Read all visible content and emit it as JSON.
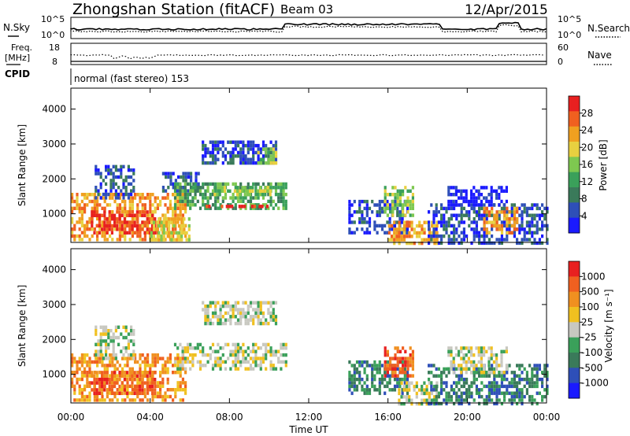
{
  "header": {
    "station": "Zhongshan Station (fitACF)",
    "beam": "Beam 03",
    "date": "12/Apr/2015"
  },
  "noise_panel": {
    "left_label": "N.Sky",
    "right_label": "N.Search",
    "left_ticks": [
      "10^5",
      "10^0"
    ],
    "right_ticks": [
      "10^5",
      "10^0"
    ]
  },
  "freq_panel": {
    "left_label_1": "Freq.",
    "left_label_2": "[MHz]",
    "right_label": "Nave",
    "left_ticks": [
      "18",
      "8"
    ],
    "right_ticks": [
      "60",
      "0"
    ]
  },
  "cpid_panel": {
    "label": "CPID",
    "text": "normal (fast stereo) 153"
  },
  "x_axis": {
    "title": "Time UT",
    "ticks": [
      "00:00",
      "04:00",
      "08:00",
      "12:00",
      "16:00",
      "20:00",
      "00:00"
    ]
  },
  "chart_data": [
    {
      "type": "heatmap",
      "name": "power",
      "ylabel": "Slant Range [km]",
      "yticks": [
        "4000",
        "3000",
        "2000",
        "1000"
      ],
      "colorbar_label": "Power [dB]",
      "colorbar_ticks": [
        "28",
        "24",
        "20",
        "16",
        "12",
        "8",
        "4"
      ],
      "palette": [
        "#1a1aff",
        "#2e4fb8",
        "#3a7a5a",
        "#3aa05a",
        "#7ec850",
        "#e8d040",
        "#f0a020",
        "#f06020",
        "#e82020"
      ],
      "colors_hex": [
        "#1a1aff",
        "#2e4fb8",
        "#3a7a5a",
        "#3aa05a",
        "#7ec850",
        "#e8d040",
        "#f0a020",
        "#f06020",
        "#e82020"
      ],
      "x_range_hours": [
        0,
        24
      ],
      "y_range_km": [
        180,
        4600
      ],
      "blocks": [
        {
          "t0": 0.0,
          "t1": 5.8,
          "r0": 300,
          "r1": 1600,
          "level": 6
        },
        {
          "t0": 1.0,
          "t1": 4.2,
          "r0": 500,
          "r1": 1100,
          "level": 8
        },
        {
          "t0": 4.0,
          "t1": 6.0,
          "r0": 300,
          "r1": 900,
          "level": 5
        },
        {
          "t0": 1.2,
          "t1": 3.2,
          "r0": 1500,
          "r1": 2400,
          "level": 1
        },
        {
          "t0": 4.6,
          "t1": 6.4,
          "r0": 1700,
          "r1": 2200,
          "level": 1
        },
        {
          "t0": 5.2,
          "t1": 10.8,
          "r0": 1200,
          "r1": 1900,
          "level": 3
        },
        {
          "t0": 7.2,
          "t1": 10.0,
          "r0": 1600,
          "r1": 1800,
          "level": 4
        },
        {
          "t0": 6.6,
          "t1": 10.4,
          "r0": 2500,
          "r1": 3100,
          "level": 1
        },
        {
          "t0": 9.4,
          "t1": 10.4,
          "r0": 2500,
          "r1": 2900,
          "level": 4
        },
        {
          "t0": 6.8,
          "t1": 10.2,
          "r0": 1180,
          "r1": 1260,
          "level": 8
        },
        {
          "t0": 14.0,
          "t1": 17.0,
          "r0": 500,
          "r1": 1400,
          "level": 1
        },
        {
          "t0": 15.8,
          "t1": 17.2,
          "r0": 1000,
          "r1": 1800,
          "level": 4
        },
        {
          "t0": 16.0,
          "t1": 18.5,
          "r0": 200,
          "r1": 800,
          "level": 6
        },
        {
          "t0": 18.0,
          "t1": 24.0,
          "r0": 200,
          "r1": 1300,
          "level": 1
        },
        {
          "t0": 20.8,
          "t1": 22.5,
          "r0": 500,
          "r1": 1200,
          "level": 6
        },
        {
          "t0": 19.0,
          "t1": 22.0,
          "r0": 1300,
          "r1": 1800,
          "level": 0
        }
      ]
    },
    {
      "type": "heatmap",
      "name": "velocity",
      "ylabel": "Slant Range [km]",
      "yticks": [
        "4000",
        "3000",
        "2000",
        "1000"
      ],
      "colorbar_label": "Velocity [m s⁻¹]",
      "colorbar_ticks": [
        "1000",
        "500",
        "100",
        "25",
        "-25",
        "-100",
        "-500",
        "-1000"
      ],
      "palette": [
        "#1a1aff",
        "#2e4fb8",
        "#3a7a5a",
        "#3aa05a",
        "#c8c8c0",
        "#f0c020",
        "#f09020",
        "#f06020",
        "#e82020"
      ],
      "colors_hex": [
        "#1a1aff",
        "#2e4fb8",
        "#3a7a5a",
        "#3aa05a",
        "#c8c8c0",
        "#f0c020",
        "#f09020",
        "#f06020",
        "#e82020"
      ],
      "x_range_hours": [
        0,
        24
      ],
      "y_range_km": [
        180,
        4600
      ],
      "blocks": [
        {
          "t0": 0.0,
          "t1": 5.8,
          "r0": 300,
          "r1": 1600,
          "level": 6
        },
        {
          "t0": 1.0,
          "t1": 4.2,
          "r0": 500,
          "r1": 1100,
          "level": 7
        },
        {
          "t0": 1.2,
          "t1": 3.2,
          "r0": 1500,
          "r1": 2400,
          "level": 4
        },
        {
          "t0": 5.2,
          "t1": 10.8,
          "r0": 1200,
          "r1": 1900,
          "level": 4
        },
        {
          "t0": 6.6,
          "t1": 10.4,
          "r0": 2500,
          "r1": 3100,
          "level": 4
        },
        {
          "t0": 14.0,
          "t1": 17.0,
          "r0": 500,
          "r1": 1400,
          "level": 2
        },
        {
          "t0": 15.8,
          "t1": 17.2,
          "r0": 1000,
          "r1": 1800,
          "level": 7
        },
        {
          "t0": 16.5,
          "t1": 18.5,
          "r0": 200,
          "r1": 800,
          "level": 4
        },
        {
          "t0": 18.0,
          "t1": 24.0,
          "r0": 200,
          "r1": 1300,
          "level": 2
        },
        {
          "t0": 19.0,
          "t1": 22.0,
          "r0": 1100,
          "r1": 1800,
          "level": 4
        }
      ]
    }
  ]
}
